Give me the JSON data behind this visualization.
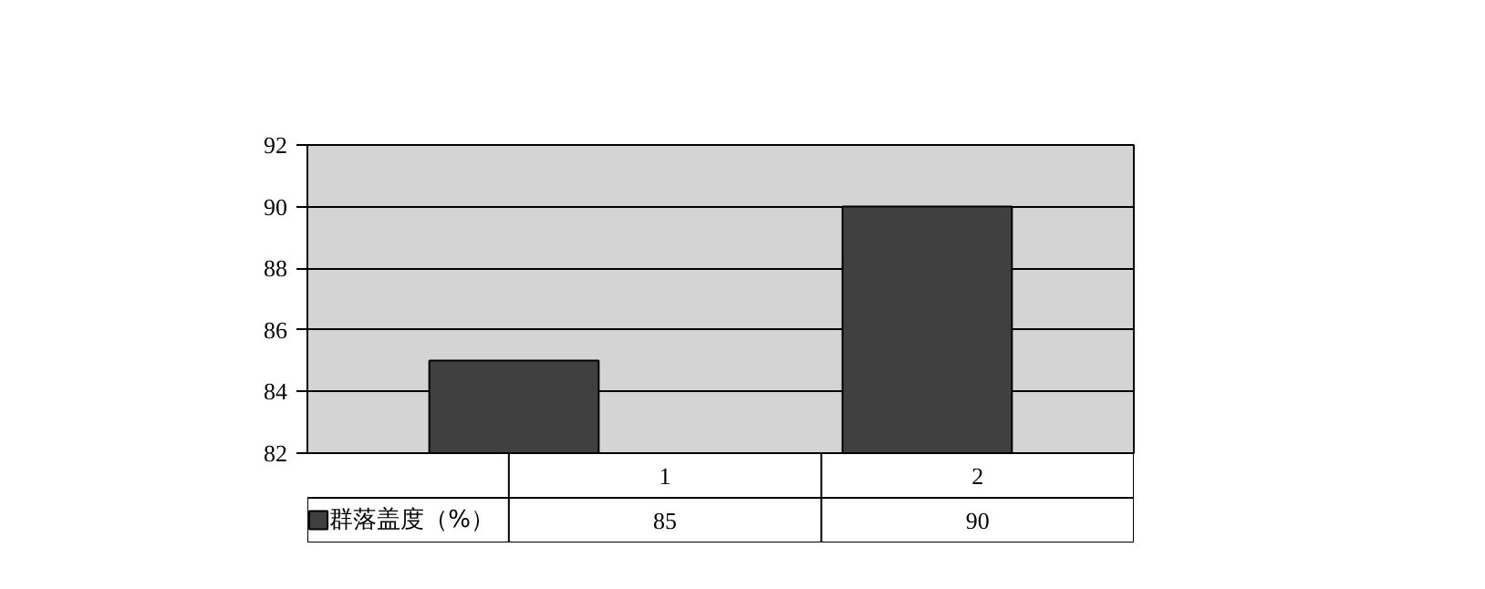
{
  "chart_data": {
    "type": "bar",
    "categories": [
      "1",
      "2"
    ],
    "series": [
      {
        "name": "群落盖度（%）",
        "color": "#404040",
        "values": [
          85,
          90
        ]
      }
    ],
    "ylim": [
      82,
      92
    ],
    "yticks": [
      82,
      84,
      86,
      88,
      90,
      92
    ],
    "grid": "y",
    "legend": "bottom",
    "data_labels": true
  }
}
